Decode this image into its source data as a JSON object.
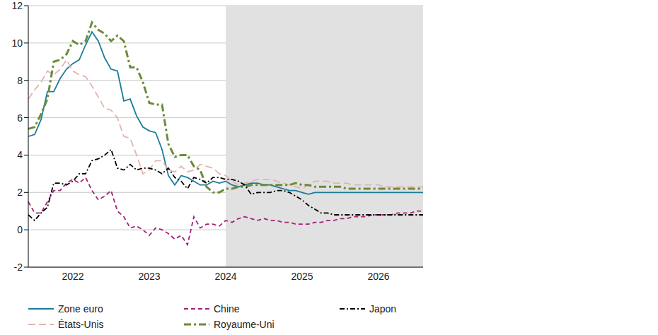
{
  "chart_data": {
    "type": "line",
    "categories": [
      null,
      null,
      null,
      null,
      null,
      null,
      null,
      "2022",
      null,
      null,
      null,
      null,
      null,
      null,
      null,
      null,
      null,
      null,
      null,
      "2023",
      null,
      null,
      null,
      null,
      null,
      null,
      null,
      null,
      null,
      null,
      null,
      "2024",
      null,
      null,
      null,
      null,
      null,
      null,
      null,
      null,
      null,
      null,
      null,
      "2025",
      null,
      null,
      null,
      null,
      null,
      null,
      null,
      null,
      null,
      null,
      null,
      "2026",
      null,
      null,
      null,
      null,
      null,
      null,
      null
    ],
    "series": [
      {
        "name": "Zone euro",
        "color": "#1b7c9a",
        "line_style": "solid",
        "values": [
          5.0,
          5.1,
          5.9,
          7.4,
          7.4,
          8.1,
          8.6,
          8.9,
          9.1,
          9.9,
          10.6,
          10.1,
          9.2,
          8.6,
          8.5,
          6.9,
          7.0,
          6.1,
          5.5,
          5.3,
          5.2,
          4.3,
          2.9,
          2.4,
          2.9,
          2.8,
          2.6,
          2.4,
          2.4,
          2.6,
          2.5,
          2.6,
          2.4,
          2.3,
          2.4,
          2.5,
          2.5,
          2.4,
          2.4,
          2.3,
          2.2,
          2.1,
          2.1,
          2.0,
          1.9,
          2.0,
          2.0,
          2.0,
          2.0,
          2.0,
          2.0,
          2.0,
          2.0,
          2.0,
          2.0,
          2.0,
          2.0,
          2.0,
          2.0,
          2.0,
          2.0,
          2.0,
          2.0
        ]
      },
      {
        "name": "États-Unis",
        "color": "#e6b3ae",
        "line_style": "dashed",
        "values": [
          7.0,
          7.5,
          7.9,
          8.5,
          8.3,
          8.6,
          9.1,
          8.5,
          8.3,
          8.2,
          7.7,
          7.1,
          6.5,
          6.4,
          6.0,
          5.0,
          4.9,
          4.0,
          3.0,
          3.2,
          3.7,
          3.7,
          3.2,
          3.1,
          3.4,
          3.1,
          3.2,
          3.5,
          3.4,
          3.3,
          3.0,
          2.9,
          2.6,
          2.4,
          2.5,
          2.6,
          2.7,
          2.7,
          2.7,
          2.6,
          2.5,
          2.4,
          2.3,
          2.2,
          2.4,
          2.6,
          2.6,
          2.6,
          2.5,
          2.5,
          2.5,
          2.4,
          2.4,
          2.4,
          2.4,
          2.4,
          2.3,
          2.3,
          2.3,
          2.3,
          2.3,
          2.3,
          2.3
        ]
      },
      {
        "name": "Chine",
        "color": "#a3237a",
        "line_style": "dashed",
        "values": [
          1.5,
          0.9,
          0.9,
          1.5,
          2.1,
          2.1,
          2.5,
          2.7,
          2.5,
          2.8,
          2.1,
          1.6,
          1.8,
          2.1,
          1.0,
          0.7,
          0.1,
          0.2,
          0.0,
          -0.3,
          0.1,
          0.0,
          -0.2,
          -0.5,
          -0.3,
          -0.8,
          0.7,
          0.1,
          0.3,
          0.3,
          0.2,
          0.5,
          0.4,
          0.6,
          0.7,
          0.6,
          0.5,
          0.6,
          0.5,
          0.5,
          0.4,
          0.4,
          0.3,
          0.3,
          0.3,
          0.4,
          0.4,
          0.5,
          0.5,
          0.6,
          0.6,
          0.7,
          0.7,
          0.7,
          0.8,
          0.8,
          0.8,
          0.8,
          0.9,
          0.9,
          0.9,
          1.0,
          1.0
        ]
      },
      {
        "name": "Royaume-Uni",
        "color": "#6a8c37",
        "line_style": "dashdot",
        "values": [
          5.4,
          5.5,
          6.2,
          7.0,
          9.0,
          9.1,
          9.4,
          10.1,
          9.9,
          10.1,
          11.1,
          10.7,
          10.5,
          10.1,
          10.4,
          10.1,
          8.7,
          8.7,
          7.9,
          6.8,
          6.7,
          6.7,
          4.6,
          3.9,
          4.0,
          4.0,
          3.4,
          3.2,
          2.3,
          2.0,
          2.0,
          2.2,
          2.2,
          2.3,
          2.3,
          2.4,
          2.4,
          2.4,
          2.4,
          2.4,
          2.4,
          2.4,
          2.5,
          2.4,
          2.4,
          2.3,
          2.3,
          2.3,
          2.3,
          2.3,
          2.2,
          2.2,
          2.2,
          2.2,
          2.2,
          2.2,
          2.2,
          2.2,
          2.2,
          2.2,
          2.2,
          2.2,
          2.2
        ]
      },
      {
        "name": "Japon",
        "color": "#000000",
        "line_style": "dashdot",
        "values": [
          0.8,
          0.5,
          0.9,
          1.2,
          2.5,
          2.5,
          2.4,
          2.6,
          3.0,
          3.0,
          3.7,
          3.8,
          4.0,
          4.3,
          3.3,
          3.2,
          3.5,
          3.2,
          3.3,
          3.3,
          3.2,
          3.0,
          3.3,
          2.8,
          2.6,
          2.2,
          2.8,
          2.7,
          2.5,
          2.8,
          2.8,
          2.7,
          2.7,
          2.6,
          2.4,
          1.9,
          2.0,
          2.0,
          2.0,
          2.1,
          2.1,
          2.0,
          1.8,
          1.6,
          1.3,
          1.1,
          0.9,
          0.9,
          0.8,
          0.8,
          0.8,
          0.8,
          0.8,
          0.8,
          0.8,
          0.8,
          0.8,
          0.8,
          0.8,
          0.8,
          0.8,
          0.8,
          0.8
        ]
      }
    ],
    "ylim": [
      -2,
      12
    ],
    "yticks": [
      -2,
      0,
      2,
      4,
      6,
      8,
      10,
      12
    ],
    "grid": true,
    "legend": "bottom",
    "shaded_from": "2024"
  }
}
